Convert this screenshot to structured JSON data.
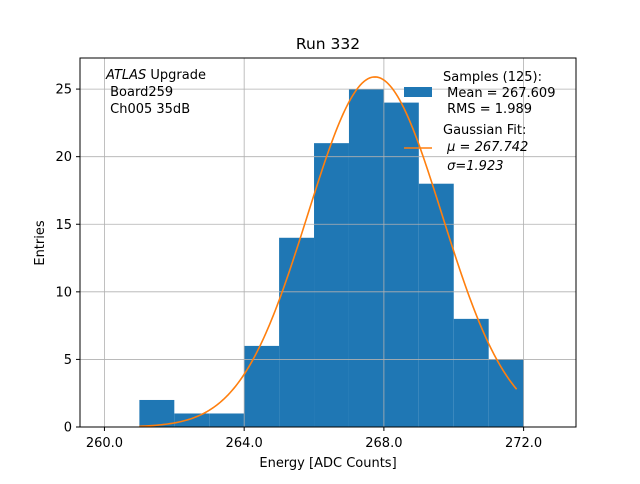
{
  "chart_data": {
    "type": "bar",
    "title": "Run 332",
    "xlabel": "Energy [ADC Counts]",
    "ylabel": "Entries",
    "xlim": [
      259.3,
      273.5
    ],
    "ylim": [
      0,
      27.3
    ],
    "grid": true,
    "x_ticks": [
      260.0,
      264.0,
      268.0,
      272.0
    ],
    "x_tick_labels": [
      "260.0",
      "264.0",
      "268.0",
      "272.0"
    ],
    "y_ticks": [
      0,
      5,
      10,
      15,
      20,
      25
    ],
    "y_tick_labels": [
      "0",
      "5",
      "10",
      "15",
      "20",
      "25"
    ],
    "bin_edges": [
      261,
      262,
      263,
      264,
      265,
      266,
      267,
      268,
      269,
      270,
      271,
      272
    ],
    "values": [
      2,
      1,
      1,
      6,
      14,
      21,
      25,
      24,
      18,
      8,
      5
    ],
    "bar_color": "#1f77b4",
    "fit": {
      "name_line1": "Gaussian Fit:",
      "mu_label": "μ = 267.742",
      "sigma_label": "σ=1.923",
      "mu": 267.742,
      "sigma": 1.923,
      "amplitude": 25.9,
      "x_range": [
        261.0,
        271.8
      ],
      "color": "#ff7f0e"
    },
    "legend": {
      "location": "top-right",
      "hist_line1": "Samples (125):",
      "hist_line2": " Mean = 267.609",
      "hist_line3": " RMS = 1.989"
    },
    "annotation": {
      "atlas": "ATLAS",
      "line1_rest": " Upgrade",
      "line2": " Board259",
      "line3": " Ch005 35dB"
    }
  }
}
